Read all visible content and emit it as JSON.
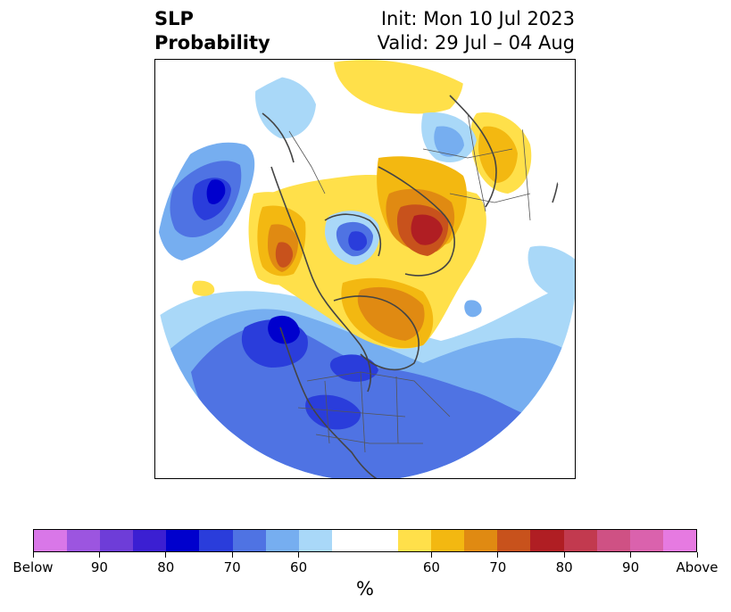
{
  "title": {
    "left_line1": "SLP",
    "left_line2": "Probability",
    "right_line1": "Init: Mon 10 Jul 2023",
    "right_line2": "Valid: 29 Jul – 04 Aug"
  },
  "colorbar": {
    "unit": "%",
    "colors": [
      "#d977e8",
      "#9c55e0",
      "#6e3dd8",
      "#3b1fd2",
      "#0000cd",
      "#2a3ddb",
      "#4f73e3",
      "#76aef0",
      "#a9d8f8",
      "#ffffff",
      "#ffe04a",
      "#f3b811",
      "#e08a12",
      "#c8521c",
      "#b01e23",
      "#c23a4f",
      "#cf5184",
      "#da62ad",
      "#e67ae1"
    ],
    "segment_flex": [
      1,
      1,
      1,
      1,
      1,
      1,
      1,
      1,
      1,
      2,
      1,
      1,
      1,
      1,
      1,
      1,
      1,
      1,
      1
    ],
    "tick_labels": [
      "Below",
      "90",
      "80",
      "70",
      "60",
      "60",
      "70",
      "80",
      "90",
      "Above"
    ]
  },
  "map": {
    "projection": "north-polar-stereographic",
    "region": "Northern Hemisphere extratropics"
  }
}
